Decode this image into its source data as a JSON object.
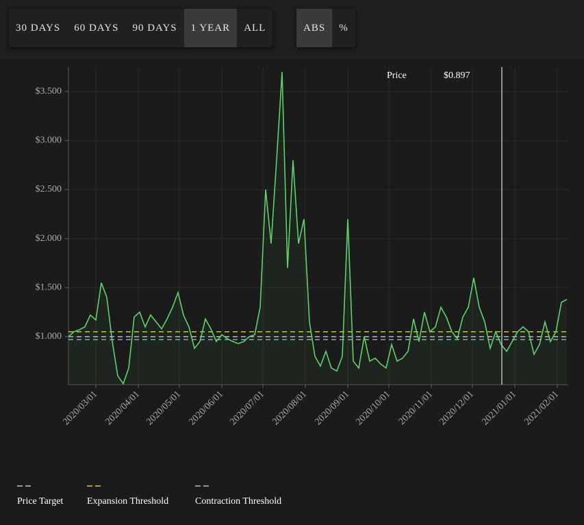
{
  "toolbar": {
    "range_buttons": [
      "30 DAYS",
      "60 DAYS",
      "90 DAYS",
      "1 YEAR",
      "ALL"
    ],
    "active_range": 3,
    "mode_buttons": [
      "ABS",
      "%"
    ],
    "active_mode": 0
  },
  "chart_data": {
    "type": "line",
    "x": [
      "2020-02-10",
      "2020-02-14",
      "2020-02-18",
      "2020-02-22",
      "2020-02-26",
      "2020-03-01",
      "2020-03-05",
      "2020-03-09",
      "2020-03-13",
      "2020-03-17",
      "2020-03-21",
      "2020-03-25",
      "2020-03-29",
      "2020-04-02",
      "2020-04-06",
      "2020-04-10",
      "2020-04-14",
      "2020-04-18",
      "2020-04-22",
      "2020-04-26",
      "2020-04-30",
      "2020-05-04",
      "2020-05-08",
      "2020-05-12",
      "2020-05-16",
      "2020-05-20",
      "2020-05-24",
      "2020-05-28",
      "2020-06-01",
      "2020-06-05",
      "2020-06-09",
      "2020-06-13",
      "2020-06-17",
      "2020-06-21",
      "2020-06-25",
      "2020-06-29",
      "2020-07-03",
      "2020-07-07",
      "2020-07-11",
      "2020-07-15",
      "2020-07-19",
      "2020-07-23",
      "2020-07-27",
      "2020-07-31",
      "2020-08-04",
      "2020-08-08",
      "2020-08-12",
      "2020-08-16",
      "2020-08-20",
      "2020-08-24",
      "2020-08-28",
      "2020-09-01",
      "2020-09-05",
      "2020-09-09",
      "2020-09-13",
      "2020-09-17",
      "2020-09-21",
      "2020-09-25",
      "2020-09-29",
      "2020-10-03",
      "2020-10-07",
      "2020-10-11",
      "2020-10-15",
      "2020-10-19",
      "2020-10-23",
      "2020-10-27",
      "2020-10-31",
      "2020-11-04",
      "2020-11-08",
      "2020-11-12",
      "2020-11-16",
      "2020-11-20",
      "2020-11-24",
      "2020-11-28",
      "2020-12-02",
      "2020-12-06",
      "2020-12-10",
      "2020-12-14",
      "2020-12-18",
      "2020-12-22",
      "2020-12-26",
      "2020-12-30",
      "2021-01-03",
      "2021-01-07",
      "2021-01-11",
      "2021-01-15",
      "2021-01-19",
      "2021-01-23",
      "2021-01-27",
      "2021-01-31",
      "2021-02-04",
      "2021-02-08"
    ],
    "series": [
      {
        "color": "#5ed36a",
        "values": [
          1.0,
          1.05,
          1.07,
          1.1,
          1.22,
          1.17,
          1.55,
          1.4,
          0.95,
          0.6,
          0.52,
          0.68,
          1.2,
          1.25,
          1.1,
          1.22,
          1.15,
          1.08,
          1.18,
          1.3,
          1.45,
          1.22,
          1.1,
          0.88,
          0.95,
          1.18,
          1.08,
          0.95,
          1.02,
          0.98,
          0.95,
          0.93,
          0.95,
          1.0,
          1.02,
          1.3,
          2.5,
          1.95,
          2.8,
          3.7,
          1.7,
          2.8,
          1.95,
          2.2,
          1.15,
          0.8,
          0.7,
          0.85,
          0.68,
          0.65,
          0.8,
          2.2,
          0.75,
          0.68,
          1.0,
          0.75,
          0.78,
          0.72,
          0.68,
          0.92,
          0.75,
          0.78,
          0.85,
          1.18,
          0.95,
          1.25,
          1.05,
          1.1,
          1.3,
          1.2,
          1.05,
          0.98,
          1.2,
          1.3,
          1.6,
          1.3,
          1.15,
          0.88,
          1.05,
          0.92,
          0.85,
          0.95,
          1.05,
          1.1,
          1.05,
          0.82,
          0.92,
          1.15,
          0.95,
          1.05,
          1.35,
          1.38
        ]
      }
    ],
    "lines": [
      {
        "name": "Price Target",
        "value": 1.0,
        "color": "#c8c8c8"
      },
      {
        "name": "Expansion Threshold",
        "value": 1.05,
        "color": "#d8d23a"
      },
      {
        "name": "Contraction Threshold",
        "value": 0.97,
        "color": "#9cc4dc"
      }
    ],
    "xlim": [
      "2020-02-10",
      "2021-02-09"
    ],
    "xticks": [
      {
        "value": "2020-03-01",
        "label": "2020/03/01"
      },
      {
        "value": "2020-04-01",
        "label": "2020/04/01"
      },
      {
        "value": "2020-05-01",
        "label": "2020/05/01"
      },
      {
        "value": "2020-06-01",
        "label": "2020/06/01"
      },
      {
        "value": "2020-07-01",
        "label": "2020/07/01"
      },
      {
        "value": "2020-08-01",
        "label": "2020/08/01"
      },
      {
        "value": "2020-09-01",
        "label": "2020/09/01"
      },
      {
        "value": "2020-10-01",
        "label": "2020/10/01"
      },
      {
        "value": "2020-11-01",
        "label": "2020/11/01"
      },
      {
        "value": "2020-12-01",
        "label": "2020/12/01"
      },
      {
        "value": "2021-01-01",
        "label": "2021/01/01"
      },
      {
        "value": "2021-02-01",
        "label": "2021/02/01"
      }
    ],
    "ylim": [
      0.51,
      3.75
    ],
    "yticks": [
      {
        "value": 1,
        "label": "$1.000"
      },
      {
        "value": 1.5,
        "label": "$1.500"
      },
      {
        "value": 2,
        "label": "$2.000"
      },
      {
        "value": 2.5,
        "label": "$2.500"
      },
      {
        "value": 3,
        "label": "$3.000"
      },
      {
        "value": 3.5,
        "label": "$3.500"
      }
    ],
    "grid": true,
    "tooltip": {
      "label": "Price",
      "value": "$0.897"
    }
  }
}
